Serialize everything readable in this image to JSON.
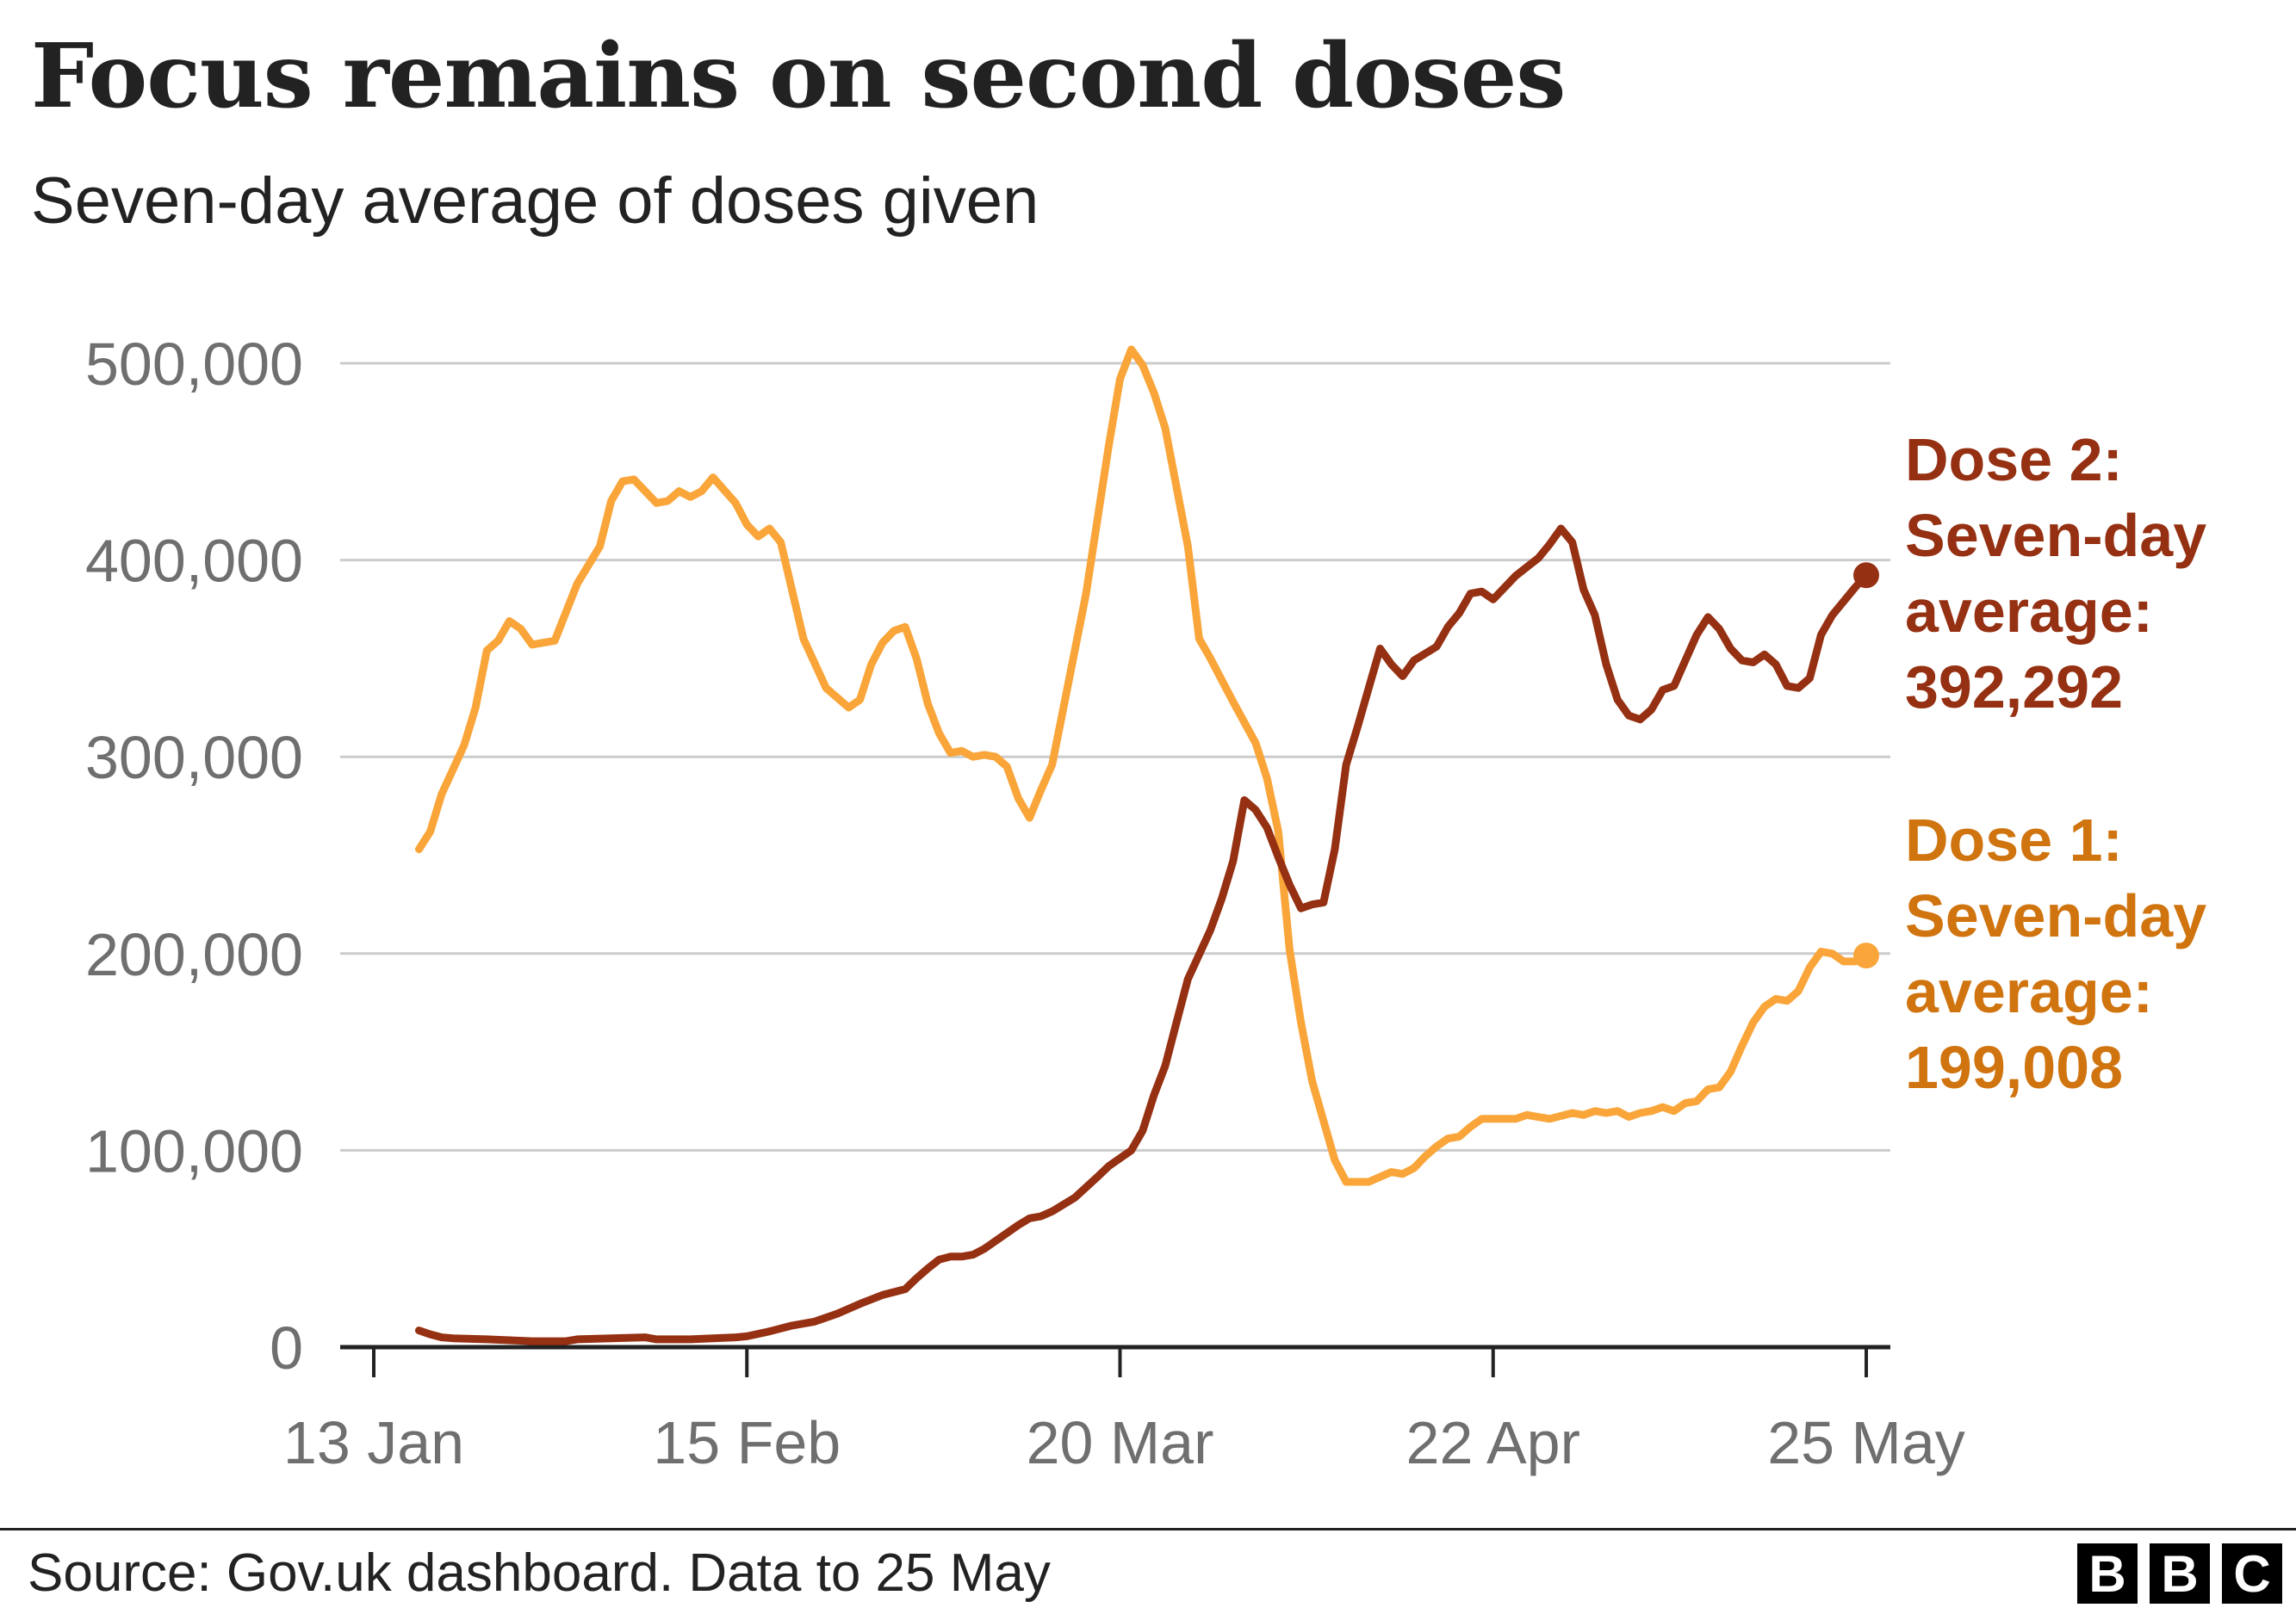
{
  "title": "Focus remains on second doses",
  "subtitle": "Seven-day average of doses given",
  "source": "Source: Gov.uk dashboard. Data to 25 May",
  "logo": {
    "letters": [
      "B",
      "B",
      "C"
    ]
  },
  "chart_data": {
    "type": "line",
    "ylim": [
      0,
      500000
    ],
    "yticks": [
      {
        "value": 0,
        "label": "0"
      },
      {
        "value": 100000,
        "label": "100,000"
      },
      {
        "value": 200000,
        "label": "200,000"
      },
      {
        "value": 300000,
        "label": "300,000"
      },
      {
        "value": 400000,
        "label": "400,000"
      },
      {
        "value": 500000,
        "label": "500,000"
      }
    ],
    "xlim": [
      "2021-01-13",
      "2021-05-25"
    ],
    "xticks": [
      {
        "date": "2021-01-13",
        "label": "13 Jan"
      },
      {
        "date": "2021-02-15",
        "label": "15 Feb"
      },
      {
        "date": "2021-03-20",
        "label": "20 Mar"
      },
      {
        "date": "2021-04-22",
        "label": "22 Apr"
      },
      {
        "date": "2021-05-25",
        "label": "25 May"
      }
    ],
    "grid": true,
    "series": [
      {
        "name": "Dose 1",
        "color": "#f9a539",
        "label_color": "#d0740f",
        "annotation": [
          "Dose 1:",
          "Seven-day",
          "average:",
          "199,008"
        ],
        "points": [
          [
            "2021-01-17",
            253000
          ],
          [
            "2021-01-18",
            262000
          ],
          [
            "2021-01-19",
            281000
          ],
          [
            "2021-01-21",
            306000
          ],
          [
            "2021-01-22",
            325000
          ],
          [
            "2021-01-23",
            354000
          ],
          [
            "2021-01-24",
            359000
          ],
          [
            "2021-01-25",
            369000
          ],
          [
            "2021-01-26",
            365000
          ],
          [
            "2021-01-27",
            357000
          ],
          [
            "2021-01-29",
            359000
          ],
          [
            "2021-01-31",
            388000
          ],
          [
            "2021-02-02",
            407000
          ],
          [
            "2021-02-03",
            430000
          ],
          [
            "2021-02-04",
            440000
          ],
          [
            "2021-02-05",
            441000
          ],
          [
            "2021-02-07",
            429000
          ],
          [
            "2021-02-08",
            430000
          ],
          [
            "2021-02-09",
            435000
          ],
          [
            "2021-02-10",
            432000
          ],
          [
            "2021-02-11",
            435000
          ],
          [
            "2021-02-12",
            442000
          ],
          [
            "2021-02-14",
            429000
          ],
          [
            "2021-02-15",
            418000
          ],
          [
            "2021-02-16",
            412000
          ],
          [
            "2021-02-17",
            416000
          ],
          [
            "2021-02-18",
            409000
          ],
          [
            "2021-02-20",
            360000
          ],
          [
            "2021-02-22",
            335000
          ],
          [
            "2021-02-23",
            330000
          ],
          [
            "2021-02-24",
            325000
          ],
          [
            "2021-02-25",
            329000
          ],
          [
            "2021-02-26",
            347000
          ],
          [
            "2021-02-27",
            358000
          ],
          [
            "2021-02-28",
            364000
          ],
          [
            "2021-03-01",
            366000
          ],
          [
            "2021-03-02",
            350000
          ],
          [
            "2021-03-03",
            327000
          ],
          [
            "2021-03-04",
            312000
          ],
          [
            "2021-03-05",
            302000
          ],
          [
            "2021-03-06",
            303000
          ],
          [
            "2021-03-07",
            300000
          ],
          [
            "2021-03-08",
            301000
          ],
          [
            "2021-03-09",
            300000
          ],
          [
            "2021-03-10",
            295000
          ],
          [
            "2021-03-11",
            279000
          ],
          [
            "2021-03-12",
            269000
          ],
          [
            "2021-03-13",
            283000
          ],
          [
            "2021-03-14",
            296000
          ],
          [
            "2021-03-15",
            325000
          ],
          [
            "2021-03-17",
            383000
          ],
          [
            "2021-03-19",
            458000
          ],
          [
            "2021-03-20",
            492000
          ],
          [
            "2021-03-21",
            507000
          ],
          [
            "2021-03-22",
            499000
          ],
          [
            "2021-03-23",
            485000
          ],
          [
            "2021-03-24",
            467000
          ],
          [
            "2021-03-26",
            407000
          ],
          [
            "2021-03-27",
            360000
          ],
          [
            "2021-03-28",
            350000
          ],
          [
            "2021-03-30",
            328000
          ],
          [
            "2021-04-01",
            307000
          ],
          [
            "2021-04-02",
            289000
          ],
          [
            "2021-04-03",
            262000
          ],
          [
            "2021-04-04",
            202000
          ],
          [
            "2021-04-05",
            165000
          ],
          [
            "2021-04-06",
            135000
          ],
          [
            "2021-04-08",
            95000
          ],
          [
            "2021-04-09",
            84000
          ],
          [
            "2021-04-11",
            84000
          ],
          [
            "2021-04-13",
            89000
          ],
          [
            "2021-04-14",
            88000
          ],
          [
            "2021-04-15",
            91000
          ],
          [
            "2021-04-16",
            97000
          ],
          [
            "2021-04-17",
            102000
          ],
          [
            "2021-04-18",
            106000
          ],
          [
            "2021-04-19",
            107000
          ],
          [
            "2021-04-20",
            112000
          ],
          [
            "2021-04-21",
            116000
          ],
          [
            "2021-04-22",
            116000
          ],
          [
            "2021-04-24",
            116000
          ],
          [
            "2021-04-25",
            118000
          ],
          [
            "2021-04-27",
            116000
          ],
          [
            "2021-04-29",
            119000
          ],
          [
            "2021-04-30",
            118000
          ],
          [
            "2021-05-01",
            120000
          ],
          [
            "2021-05-02",
            119000
          ],
          [
            "2021-05-03",
            120000
          ],
          [
            "2021-05-04",
            117000
          ],
          [
            "2021-05-05",
            119000
          ],
          [
            "2021-05-06",
            120000
          ],
          [
            "2021-05-07",
            122000
          ],
          [
            "2021-05-08",
            120000
          ],
          [
            "2021-05-09",
            124000
          ],
          [
            "2021-05-10",
            125000
          ],
          [
            "2021-05-11",
            131000
          ],
          [
            "2021-05-12",
            132000
          ],
          [
            "2021-05-13",
            140000
          ],
          [
            "2021-05-14",
            153000
          ],
          [
            "2021-05-15",
            165000
          ],
          [
            "2021-05-16",
            173000
          ],
          [
            "2021-05-17",
            177000
          ],
          [
            "2021-05-18",
            176000
          ],
          [
            "2021-05-19",
            181000
          ],
          [
            "2021-05-20",
            193000
          ],
          [
            "2021-05-21",
            201000
          ],
          [
            "2021-05-22",
            200000
          ],
          [
            "2021-05-23",
            196000
          ],
          [
            "2021-05-24",
            196000
          ],
          [
            "2021-05-25",
            199008
          ]
        ]
      },
      {
        "name": "Dose 2",
        "color": "#953012",
        "label_color": "#953012",
        "annotation": [
          "Dose 2:",
          "Seven-day",
          "average:",
          "392,292"
        ],
        "points": [
          [
            "2021-01-17",
            8500
          ],
          [
            "2021-01-18",
            6500
          ],
          [
            "2021-01-19",
            5000
          ],
          [
            "2021-01-20",
            4500
          ],
          [
            "2021-01-23",
            4000
          ],
          [
            "2021-01-27",
            3000
          ],
          [
            "2021-01-30",
            3000
          ],
          [
            "2021-01-31",
            4000
          ],
          [
            "2021-02-03",
            4500
          ],
          [
            "2021-02-06",
            5000
          ],
          [
            "2021-02-07",
            4000
          ],
          [
            "2021-02-10",
            4000
          ],
          [
            "2021-02-14",
            5000
          ],
          [
            "2021-02-15",
            5500
          ],
          [
            "2021-02-17",
            8000
          ],
          [
            "2021-02-19",
            11000
          ],
          [
            "2021-02-21",
            13000
          ],
          [
            "2021-02-23",
            17000
          ],
          [
            "2021-02-25",
            22000
          ],
          [
            "2021-02-27",
            26500
          ],
          [
            "2021-03-01",
            29500
          ],
          [
            "2021-03-02",
            35000
          ],
          [
            "2021-03-03",
            40000
          ],
          [
            "2021-03-04",
            44500
          ],
          [
            "2021-03-05",
            46000
          ],
          [
            "2021-03-06",
            46000
          ],
          [
            "2021-03-07",
            47000
          ],
          [
            "2021-03-08",
            50000
          ],
          [
            "2021-03-09",
            54000
          ],
          [
            "2021-03-10",
            58000
          ],
          [
            "2021-03-11",
            62000
          ],
          [
            "2021-03-12",
            65500
          ],
          [
            "2021-03-13",
            66500
          ],
          [
            "2021-03-14",
            69000
          ],
          [
            "2021-03-16",
            76000
          ],
          [
            "2021-03-18",
            86500
          ],
          [
            "2021-03-19",
            92000
          ],
          [
            "2021-03-21",
            100000
          ],
          [
            "2021-03-22",
            110000
          ],
          [
            "2021-03-23",
            128000
          ],
          [
            "2021-03-24",
            143000
          ],
          [
            "2021-03-25",
            165000
          ],
          [
            "2021-03-26",
            187000
          ],
          [
            "2021-03-28",
            212000
          ],
          [
            "2021-03-29",
            228000
          ],
          [
            "2021-03-30",
            247000
          ],
          [
            "2021-03-31",
            278000
          ],
          [
            "2021-04-01",
            273000
          ],
          [
            "2021-04-02",
            264000
          ],
          [
            "2021-04-03",
            249000
          ],
          [
            "2021-04-04",
            235000
          ],
          [
            "2021-04-05",
            223000
          ],
          [
            "2021-04-06",
            225000
          ],
          [
            "2021-04-07",
            226000
          ],
          [
            "2021-04-08",
            253000
          ],
          [
            "2021-04-09",
            296000
          ],
          [
            "2021-04-10",
            315000
          ],
          [
            "2021-04-11",
            335000
          ],
          [
            "2021-04-12",
            355000
          ],
          [
            "2021-04-13",
            347000
          ],
          [
            "2021-04-14",
            341000
          ],
          [
            "2021-04-15",
            349000
          ],
          [
            "2021-04-17",
            356000
          ],
          [
            "2021-04-18",
            366000
          ],
          [
            "2021-04-19",
            373000
          ],
          [
            "2021-04-20",
            383000
          ],
          [
            "2021-04-21",
            384000
          ],
          [
            "2021-04-22",
            380000
          ],
          [
            "2021-04-23",
            386000
          ],
          [
            "2021-04-24",
            392000
          ],
          [
            "2021-04-26",
            401000
          ],
          [
            "2021-04-27",
            408000
          ],
          [
            "2021-04-28",
            416000
          ],
          [
            "2021-04-29",
            409000
          ],
          [
            "2021-04-30",
            385000
          ],
          [
            "2021-05-01",
            372000
          ],
          [
            "2021-05-02",
            347000
          ],
          [
            "2021-05-03",
            329000
          ],
          [
            "2021-05-04",
            321000
          ],
          [
            "2021-05-05",
            319000
          ],
          [
            "2021-05-06",
            324000
          ],
          [
            "2021-05-07",
            334000
          ],
          [
            "2021-05-08",
            336000
          ],
          [
            "2021-05-10",
            362000
          ],
          [
            "2021-05-11",
            371000
          ],
          [
            "2021-05-12",
            365000
          ],
          [
            "2021-05-13",
            355000
          ],
          [
            "2021-05-14",
            349000
          ],
          [
            "2021-05-15",
            348000
          ],
          [
            "2021-05-16",
            352000
          ],
          [
            "2021-05-17",
            347000
          ],
          [
            "2021-05-18",
            336000
          ],
          [
            "2021-05-19",
            335000
          ],
          [
            "2021-05-20",
            340000
          ],
          [
            "2021-05-21",
            362000
          ],
          [
            "2021-05-22",
            372000
          ],
          [
            "2021-05-24",
            386000
          ],
          [
            "2021-05-25",
            392292
          ]
        ]
      }
    ]
  }
}
